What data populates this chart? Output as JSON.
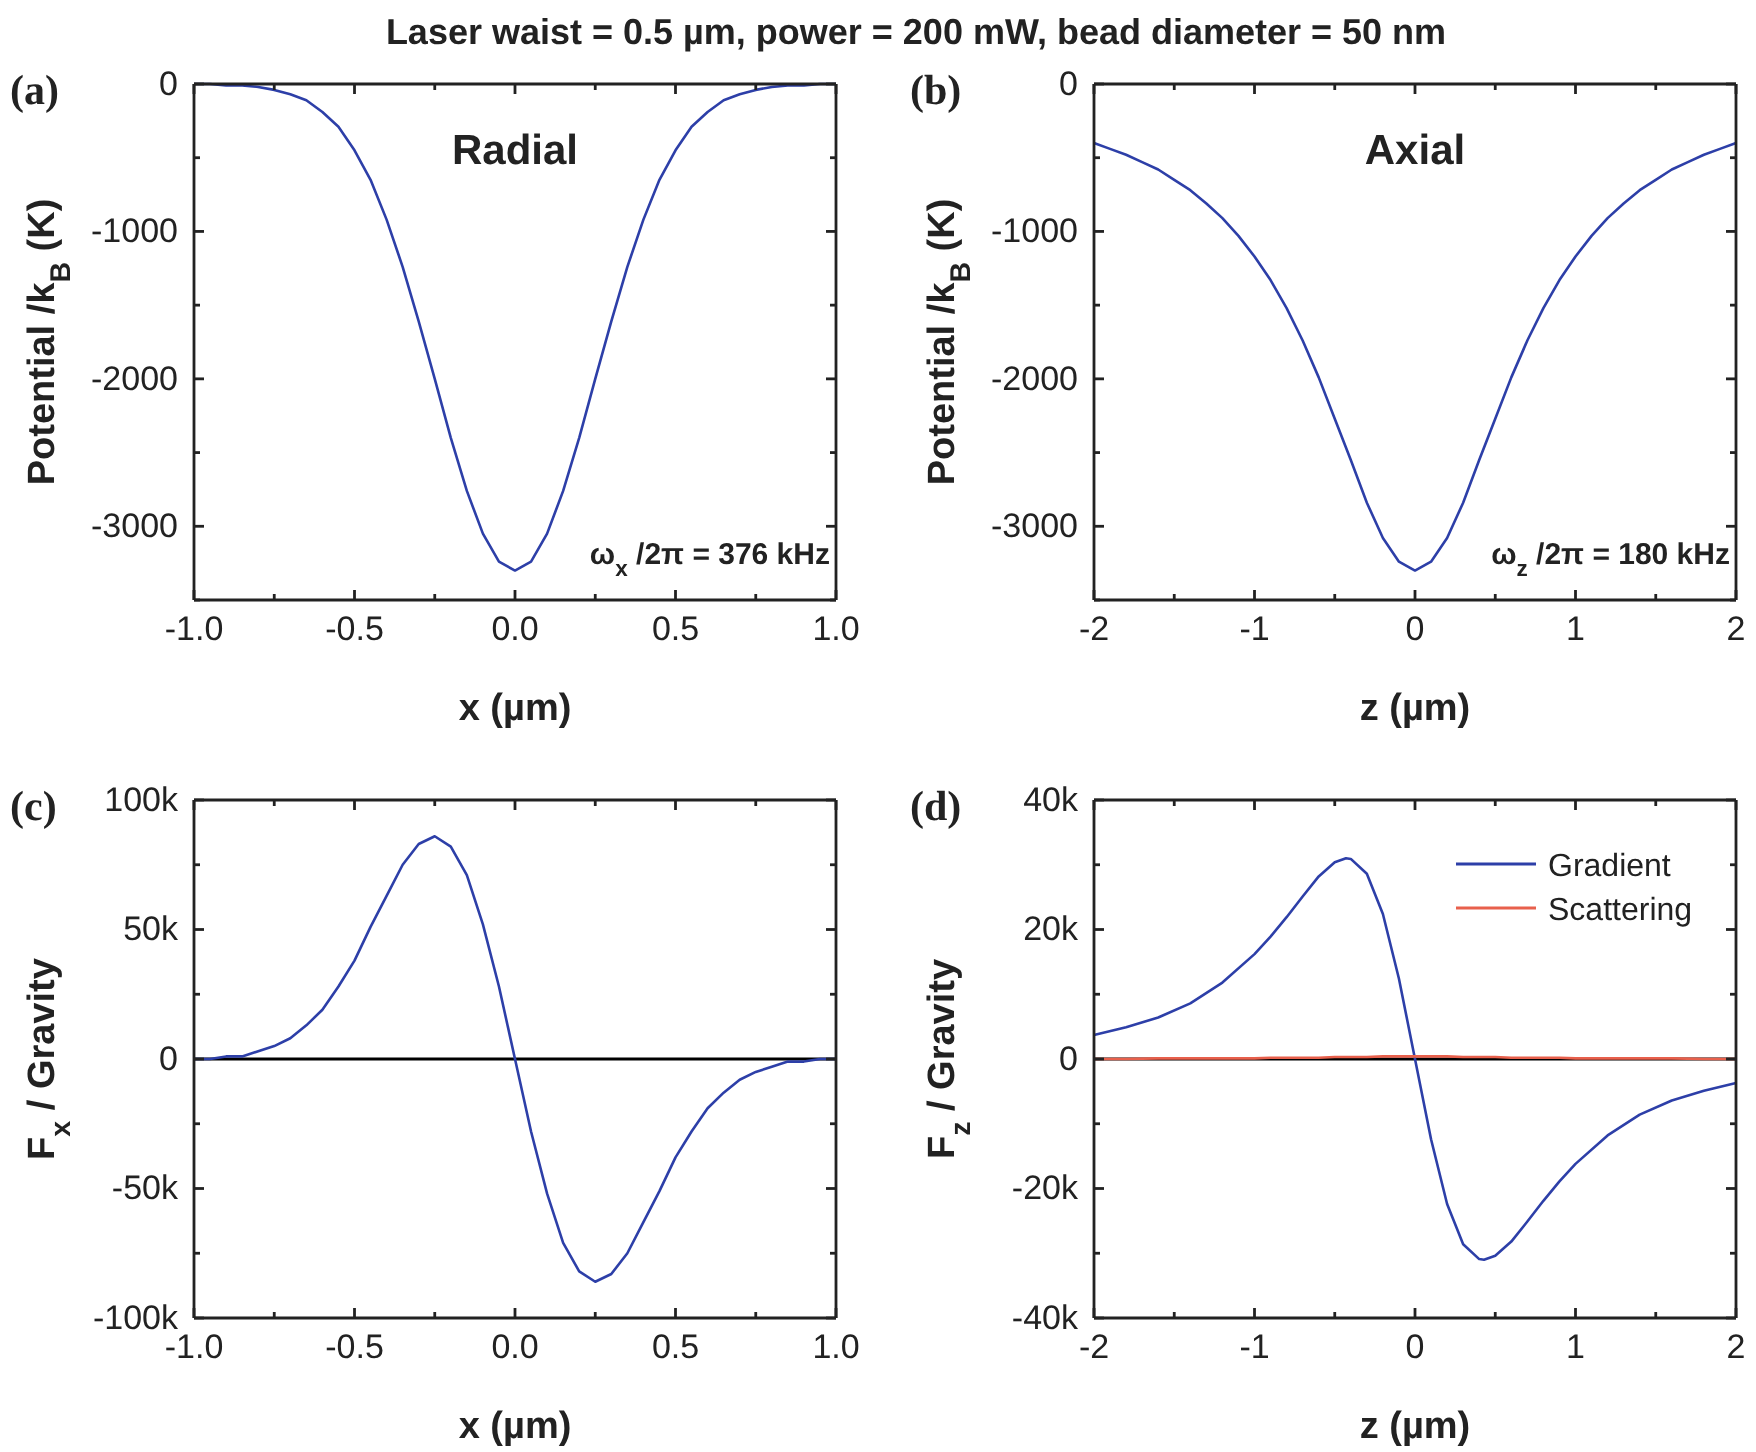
{
  "chart_data": [
    {
      "type": "line",
      "title": "Laser waist = 0.5 µm, power = 200 mW, bead diameter = 50 nm",
      "xlabel": "x (µm)",
      "ylabel": "Potential /k$_{B}$ (K)",
      "annotations": [
        "(a)",
        "Radial",
        "ω$_{x}$ /2π = 376 kHz"
      ],
      "xlim": [
        -1,
        1
      ],
      "xticks": [
        {
          "value": -1,
          "label": "-1.0"
        },
        {
          "value": -0.75,
          "label": null
        },
        {
          "value": -0.5,
          "label": "-0.5"
        },
        {
          "value": -0.25,
          "label": null
        },
        {
          "value": 0,
          "label": "0.0"
        },
        {
          "value": 0.25,
          "label": null
        },
        {
          "value": 0.5,
          "label": "0.5"
        },
        {
          "value": 0.75,
          "label": null
        },
        {
          "value": 1,
          "label": "1.0"
        }
      ],
      "ylim": [
        -3500,
        0
      ],
      "yticks": [
        {
          "value": -3500,
          "label": null
        },
        -3000,
        {
          "value": -2500,
          "label": null
        },
        -2000,
        {
          "value": -1500,
          "label": null
        },
        -1000,
        {
          "value": -500,
          "label": null
        },
        0
      ],
      "x": [
        -1,
        -0.95,
        -0.9,
        -0.85,
        -0.8,
        -0.75,
        -0.7,
        -0.65,
        -0.6,
        -0.55,
        -0.5,
        -0.45,
        -0.4,
        -0.35,
        -0.3,
        -0.25,
        -0.2,
        -0.15,
        -0.1,
        -0.05,
        0,
        0.05,
        0.1,
        0.15,
        0.2,
        0.25,
        0.3,
        0.35,
        0.4,
        0.45,
        0.5,
        0.55,
        0.6,
        0.65,
        0.7,
        0.75,
        0.8,
        0.85,
        0.9,
        0.95,
        1
      ],
      "series": [
        {
          "color": "#2d3fa8",
          "values": [
            0,
            0,
            -10,
            -10,
            -20,
            -40,
            -70,
            -110,
            -190,
            -290,
            -450,
            -650,
            -920,
            -1240,
            -1610,
            -2000,
            -2400,
            -2760,
            -3050,
            -3240,
            -3300,
            -3240,
            -3050,
            -2760,
            -2400,
            -2000,
            -1610,
            -1240,
            -920,
            -650,
            -450,
            -290,
            -190,
            -110,
            -70,
            -40,
            -20,
            -10,
            -10,
            0,
            0
          ]
        }
      ]
    },
    {
      "type": "line",
      "xlabel": "z (µm)",
      "ylabel": "Potential /k$_{B}$ (K)",
      "annotations": [
        "(b)",
        "Axial",
        "ω$_{z}$ /2π = 180 kHz"
      ],
      "xlim": [
        -2,
        2
      ],
      "xticks": [
        -2,
        {
          "value": -1.5,
          "label": null
        },
        -1,
        {
          "value": -0.5,
          "label": null
        },
        0,
        {
          "value": 0.5,
          "label": null
        },
        1,
        {
          "value": 1.5,
          "label": null
        },
        2
      ],
      "ylim": [
        -3500,
        0
      ],
      "yticks": [
        {
          "value": -3500,
          "label": null
        },
        -3000,
        {
          "value": -2500,
          "label": null
        },
        -2000,
        {
          "value": -1500,
          "label": null
        },
        -1000,
        {
          "value": -500,
          "label": null
        },
        0
      ],
      "x": [
        -2,
        -1.9,
        -1.8,
        -1.7,
        -1.6,
        -1.5,
        -1.4,
        -1.3,
        -1.2,
        -1.1,
        -1,
        -0.9,
        -0.8,
        -0.7,
        -0.6,
        -0.5,
        -0.4,
        -0.3,
        -0.2,
        -0.1,
        0,
        0.1,
        0.2,
        0.3,
        0.4,
        0.5,
        0.6,
        0.7,
        0.8,
        0.9,
        1,
        1.1,
        1.2,
        1.3,
        1.4,
        1.5,
        1.6,
        1.7,
        1.8,
        1.9,
        2
      ],
      "series": [
        {
          "color": "#2d3fa8",
          "values": [
            -400,
            -440,
            -480,
            -530,
            -580,
            -650,
            -720,
            -810,
            -910,
            -1030,
            -1170,
            -1330,
            -1520,
            -1740,
            -1990,
            -2270,
            -2550,
            -2840,
            -3080,
            -3240,
            -3300,
            -3240,
            -3080,
            -2840,
            -2550,
            -2270,
            -1990,
            -1740,
            -1520,
            -1330,
            -1170,
            -1030,
            -910,
            -810,
            -720,
            -650,
            -580,
            -530,
            -480,
            -440,
            -400
          ]
        }
      ]
    },
    {
      "type": "line",
      "xlabel": "x (µm)",
      "ylabel": "F$_{x}$ / Gravity",
      "annotations": [
        "(c)"
      ],
      "xlim": [
        -1,
        1
      ],
      "xticks": [
        {
          "value": -1,
          "label": "-1.0"
        },
        {
          "value": -0.75,
          "label": null
        },
        {
          "value": -0.5,
          "label": "-0.5"
        },
        {
          "value": -0.25,
          "label": null
        },
        {
          "value": 0,
          "label": "0.0"
        },
        {
          "value": 0.25,
          "label": null
        },
        {
          "value": 0.5,
          "label": "0.5"
        },
        {
          "value": 0.75,
          "label": null
        },
        {
          "value": 1,
          "label": "1.0"
        }
      ],
      "ylim": [
        -100000,
        100000
      ],
      "yticks": [
        {
          "value": -100000,
          "label": "-100k"
        },
        {
          "value": -75000,
          "label": null
        },
        {
          "value": -50000,
          "label": "-50k"
        },
        {
          "value": -25000,
          "label": null
        },
        0,
        {
          "value": 25000,
          "label": null
        },
        {
          "value": 50000,
          "label": "50k"
        },
        {
          "value": 75000,
          "label": null
        },
        {
          "value": 100000,
          "label": "100k"
        }
      ],
      "ref_lines": [
        {
          "axis": "y",
          "value": 0,
          "color": "#000000"
        }
      ],
      "x": [
        -1,
        -0.95,
        -0.9,
        -0.85,
        -0.8,
        -0.75,
        -0.7,
        -0.65,
        -0.6,
        -0.55,
        -0.5,
        -0.45,
        -0.4,
        -0.35,
        -0.3,
        -0.25,
        -0.2,
        -0.15,
        -0.1,
        -0.05,
        0,
        0.05,
        0.1,
        0.15,
        0.2,
        0.25,
        0.3,
        0.35,
        0.4,
        0.45,
        0.5,
        0.55,
        0.6,
        0.65,
        0.7,
        0.75,
        0.8,
        0.85,
        0.9,
        0.95,
        1
      ],
      "series": [
        {
          "color": "#2d3fa8",
          "values": [
            0,
            0,
            1000,
            1000,
            3000,
            5000,
            8000,
            13000,
            19000,
            28000,
            38000,
            51000,
            63000,
            75000,
            83000,
            86000,
            82000,
            71000,
            52000,
            28000,
            0,
            -28000,
            -52000,
            -71000,
            -82000,
            -86000,
            -83000,
            -75000,
            -63000,
            -51000,
            -38000,
            -28000,
            -19000,
            -13000,
            -8000,
            -5000,
            -3000,
            -1000,
            -1000,
            0,
            0
          ]
        }
      ]
    },
    {
      "type": "line",
      "xlabel": "z (µm)",
      "ylabel": "F$_{z}$ / Gravity",
      "annotations": [
        "(d)"
      ],
      "legend": "top right",
      "xlim": [
        -2,
        2
      ],
      "xticks": [
        -2,
        {
          "value": -1.5,
          "label": null
        },
        -1,
        {
          "value": -0.5,
          "label": null
        },
        0,
        {
          "value": 0.5,
          "label": null
        },
        1,
        {
          "value": 1.5,
          "label": null
        },
        2
      ],
      "ylim": [
        -40000,
        40000
      ],
      "yticks": [
        {
          "value": -40000,
          "label": "-40k"
        },
        {
          "value": -30000,
          "label": null
        },
        {
          "value": -20000,
          "label": "-20k"
        },
        {
          "value": -10000,
          "label": null
        },
        0,
        {
          "value": 10000,
          "label": null
        },
        {
          "value": 20000,
          "label": "20k"
        },
        {
          "value": 30000,
          "label": null
        },
        {
          "value": 40000,
          "label": "40k"
        }
      ],
      "ref_lines": [
        {
          "axis": "y",
          "value": 0,
          "color": "#000000"
        }
      ],
      "x": [
        -2,
        -1.8,
        -1.6,
        -1.4,
        -1.2,
        -1,
        -0.9,
        -0.8,
        -0.7,
        -0.6,
        -0.5,
        -0.43,
        -0.4,
        -0.3,
        -0.2,
        -0.1,
        0,
        0.1,
        0.2,
        0.3,
        0.4,
        0.43,
        0.5,
        0.6,
        0.7,
        0.8,
        0.9,
        1,
        1.2,
        1.4,
        1.6,
        1.8,
        2
      ],
      "series": [
        {
          "name": "Gradient",
          "color": "#2d3fa8",
          "values": [
            3700,
            4900,
            6400,
            8600,
            11800,
            16200,
            18900,
            21900,
            25100,
            28200,
            30400,
            31000,
            30900,
            28600,
            22400,
            12400,
            0,
            -12400,
            -22400,
            -28600,
            -30900,
            -31000,
            -30400,
            -28200,
            -25100,
            -21900,
            -18900,
            -16200,
            -11800,
            -8600,
            -6400,
            -4900,
            -3700
          ]
        },
        {
          "name": "Scattering",
          "color": "#e8604c",
          "values": [
            0,
            0,
            100,
            100,
            100,
            100,
            200,
            200,
            200,
            200,
            300,
            300,
            300,
            300,
            400,
            400,
            400,
            400,
            400,
            300,
            300,
            300,
            300,
            200,
            200,
            200,
            200,
            100,
            100,
            100,
            100,
            0,
            0
          ]
        }
      ]
    }
  ]
}
